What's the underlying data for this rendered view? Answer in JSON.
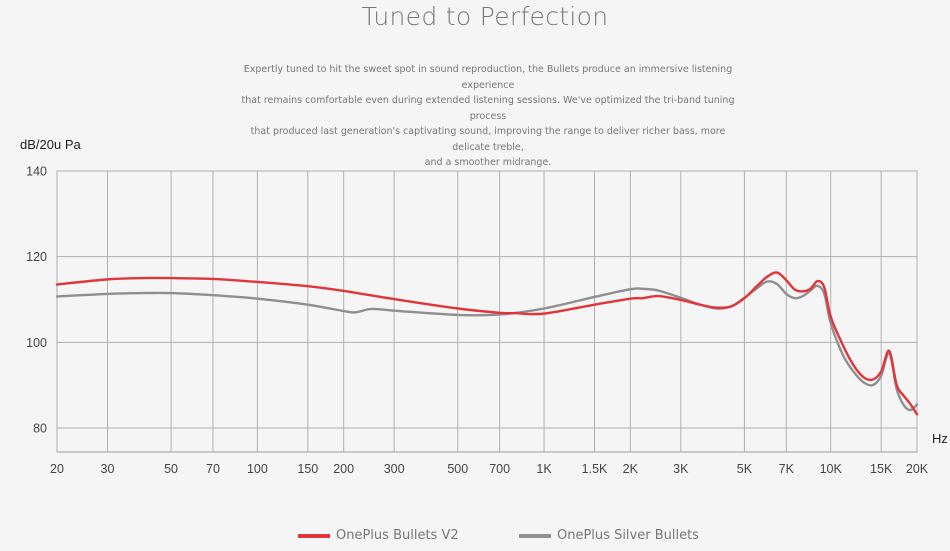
{
  "header": {
    "title": "Tuned to Perfection",
    "description": [
      "Expertly tuned to hit the sweet spot in sound reproduction, the Bullets produce an immersive listening experience",
      "that remains comfortable even during extended listening sessions. We've optimized the tri-band tuning process",
      "that produced last generation's captivating sound, improving the range to deliver richer bass, more delicate treble,",
      "and a smoother midrange."
    ]
  },
  "chart_data": {
    "type": "line",
    "ylabel": "dB/20u Pa",
    "xlabel": "Hz",
    "x_scale": "log",
    "xlim": [
      20,
      20000
    ],
    "ylim": [
      80,
      140
    ],
    "y_ticks": [
      80,
      100,
      120,
      140
    ],
    "x_ticks": [
      {
        "value": 20,
        "label": "20"
      },
      {
        "value": 30,
        "label": "30"
      },
      {
        "value": 50,
        "label": "50"
      },
      {
        "value": 70,
        "label": "70"
      },
      {
        "value": 100,
        "label": "100"
      },
      {
        "value": 150,
        "label": "150"
      },
      {
        "value": 200,
        "label": "200"
      },
      {
        "value": 300,
        "label": "300"
      },
      {
        "value": 500,
        "label": "500"
      },
      {
        "value": 700,
        "label": "700"
      },
      {
        "value": 1000,
        "label": "1K"
      },
      {
        "value": 1500,
        "label": "1.5K"
      },
      {
        "value": 2000,
        "label": "2K"
      },
      {
        "value": 3000,
        "label": "3K"
      },
      {
        "value": 5000,
        "label": "5K"
      },
      {
        "value": 7000,
        "label": "7K"
      },
      {
        "value": 10000,
        "label": "10K"
      },
      {
        "value": 15000,
        "label": "15K"
      },
      {
        "value": 20000,
        "label": "20K"
      }
    ],
    "grid": true,
    "legend_position": "bottom",
    "series": [
      {
        "name": "OnePlus Bullets V2",
        "color": "#e0353a",
        "points": [
          [
            20,
            113.5
          ],
          [
            30,
            114.7
          ],
          [
            40,
            115
          ],
          [
            50,
            115
          ],
          [
            70,
            114.8
          ],
          [
            100,
            114.1
          ],
          [
            150,
            113.1
          ],
          [
            200,
            112
          ],
          [
            300,
            110.1
          ],
          [
            500,
            107.9
          ],
          [
            700,
            106.9
          ],
          [
            800,
            106.8
          ],
          [
            1000,
            106.7
          ],
          [
            1500,
            108.8
          ],
          [
            2000,
            110.2
          ],
          [
            2200,
            110.3
          ],
          [
            2500,
            110.8
          ],
          [
            3000,
            109.9
          ],
          [
            3500,
            108.8
          ],
          [
            4000,
            108.1
          ],
          [
            4500,
            108.4
          ],
          [
            5000,
            110.3
          ],
          [
            5500,
            113
          ],
          [
            6000,
            115.3
          ],
          [
            6500,
            116.3
          ],
          [
            7000,
            114.5
          ],
          [
            7500,
            112.3
          ],
          [
            8000,
            111.9
          ],
          [
            8500,
            112.5
          ],
          [
            9000,
            114.3
          ],
          [
            9500,
            112.8
          ],
          [
            10000,
            106
          ],
          [
            11000,
            99.5
          ],
          [
            12000,
            94.7
          ],
          [
            13000,
            91.9
          ],
          [
            14000,
            91.3
          ],
          [
            15000,
            93.2
          ],
          [
            16000,
            98
          ],
          [
            17000,
            90
          ],
          [
            18000,
            87.5
          ],
          [
            19000,
            85.5
          ],
          [
            20000,
            83.2
          ]
        ]
      },
      {
        "name": "OnePlus Silver Bullets",
        "color": "#8f8f8f",
        "points": [
          [
            20,
            110.7
          ],
          [
            30,
            111.3
          ],
          [
            40,
            111.5
          ],
          [
            50,
            111.5
          ],
          [
            70,
            111
          ],
          [
            100,
            110.2
          ],
          [
            150,
            108.8
          ],
          [
            200,
            107.3
          ],
          [
            220,
            107
          ],
          [
            250,
            107.8
          ],
          [
            300,
            107.4
          ],
          [
            500,
            106.4
          ],
          [
            700,
            106.5
          ],
          [
            1000,
            107.9
          ],
          [
            1500,
            110.6
          ],
          [
            2000,
            112.4
          ],
          [
            2200,
            112.5
          ],
          [
            2500,
            112.1
          ],
          [
            3000,
            110.4
          ],
          [
            3500,
            108.8
          ],
          [
            4000,
            107.9
          ],
          [
            4500,
            108.4
          ],
          [
            5000,
            110.4
          ],
          [
            5500,
            112.5
          ],
          [
            6000,
            114.2
          ],
          [
            6500,
            113.6
          ],
          [
            7000,
            111.3
          ],
          [
            7500,
            110.3
          ],
          [
            8000,
            110.8
          ],
          [
            8500,
            112.1
          ],
          [
            9000,
            113.2
          ],
          [
            9500,
            111.3
          ],
          [
            10000,
            104.5
          ],
          [
            11000,
            97.2
          ],
          [
            12000,
            93.2
          ],
          [
            13000,
            90.7
          ],
          [
            14000,
            90
          ],
          [
            15000,
            92.2
          ],
          [
            16000,
            97.5
          ],
          [
            17000,
            89
          ],
          [
            18000,
            85.3
          ],
          [
            19000,
            84.2
          ],
          [
            20000,
            85.5
          ]
        ]
      }
    ]
  }
}
